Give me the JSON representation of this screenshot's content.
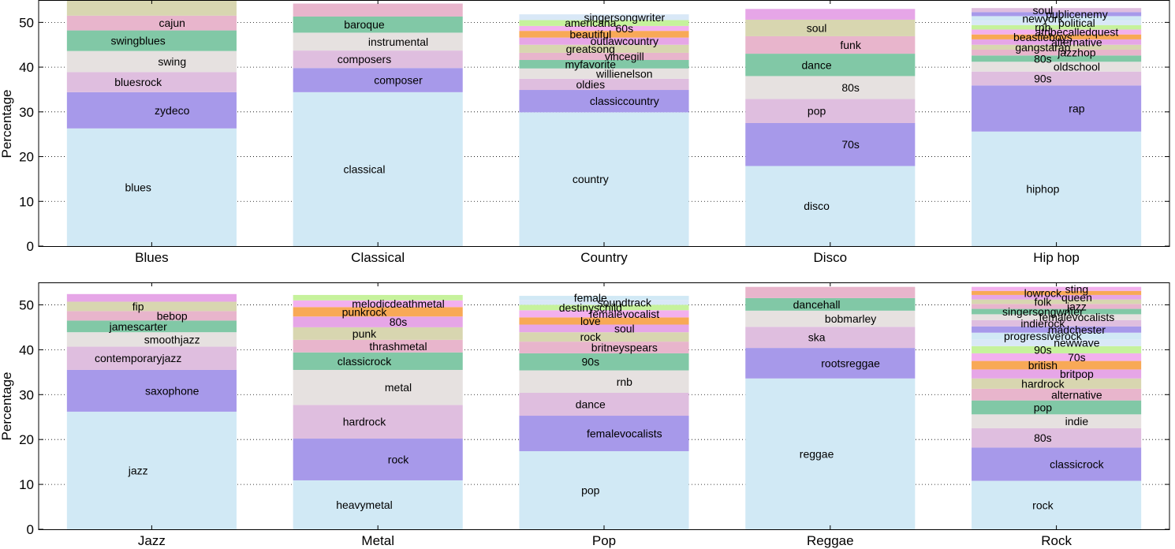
{
  "chart_data": [
    {
      "type": "bar",
      "stacked": true,
      "ylabel": "Percentage",
      "ylim": [
        0,
        55
      ],
      "yticks": [
        0,
        10,
        20,
        30,
        40,
        50
      ],
      "grid": "horizontal-dotted",
      "bars": [
        {
          "category": "Blues",
          "segments": [
            {
              "tag": "blues",
              "value": 26.3
            },
            {
              "tag": "zydeco",
              "value": 8.1
            },
            {
              "tag": "bluesrock",
              "value": 4.5
            },
            {
              "tag": "swing",
              "value": 4.7
            },
            {
              "tag": "swingblues",
              "value": 4.6
            },
            {
              "tag": "cajun",
              "value": 3.3
            },
            {
              "tag": "",
              "value": 3.5
            }
          ]
        },
        {
          "category": "Classical",
          "segments": [
            {
              "tag": "classical",
              "value": 34.4
            },
            {
              "tag": "composer",
              "value": 5.4
            },
            {
              "tag": "composers",
              "value": 3.9
            },
            {
              "tag": "instrumental",
              "value": 4.0
            },
            {
              "tag": "baroque",
              "value": 3.6
            },
            {
              "tag": "",
              "value": 2.9
            }
          ]
        },
        {
          "category": "Country",
          "segments": [
            {
              "tag": "country",
              "value": 29.9
            },
            {
              "tag": "classiccountry",
              "value": 5.0
            },
            {
              "tag": "oldies",
              "value": 2.5
            },
            {
              "tag": "willienelson",
              "value": 2.3
            },
            {
              "tag": "myfavorite",
              "value": 1.9
            },
            {
              "tag": "vincegill",
              "value": 1.6
            },
            {
              "tag": "greatsong",
              "value": 1.8
            },
            {
              "tag": "outlawcountry",
              "value": 1.6
            },
            {
              "tag": "beautiful",
              "value": 1.5
            },
            {
              "tag": "60s",
              "value": 1.1
            },
            {
              "tag": "americana",
              "value": 1.3
            },
            {
              "tag": "singersongwriter",
              "value": 1.3
            }
          ]
        },
        {
          "category": "Disco",
          "segments": [
            {
              "tag": "disco",
              "value": 17.9
            },
            {
              "tag": "70s",
              "value": 9.6
            },
            {
              "tag": "pop",
              "value": 5.4
            },
            {
              "tag": "80s",
              "value": 5.1
            },
            {
              "tag": "dance",
              "value": 5.0
            },
            {
              "tag": "funk",
              "value": 3.9
            },
            {
              "tag": "soul",
              "value": 3.7
            },
            {
              "tag": "",
              "value": 2.4
            }
          ]
        },
        {
          "category": "Hip hop",
          "segments": [
            {
              "tag": "hiphop",
              "value": 25.6
            },
            {
              "tag": "rap",
              "value": 10.3
            },
            {
              "tag": "90s",
              "value": 3.1
            },
            {
              "tag": "oldschool",
              "value": 2.2
            },
            {
              "tag": "80s",
              "value": 1.4
            },
            {
              "tag": "jazzhop",
              "value": 1.3
            },
            {
              "tag": "gangstarap",
              "value": 1.1
            },
            {
              "tag": "alternative",
              "value": 1.2
            },
            {
              "tag": "beastieboys",
              "value": 1.1
            },
            {
              "tag": "atribecalledquest",
              "value": 1.1
            },
            {
              "tag": "rnb",
              "value": 1.0
            },
            {
              "tag": "political",
              "value": 1.0
            },
            {
              "tag": "newyork",
              "value": 1.0
            },
            {
              "tag": "publicenemy",
              "value": 0.9
            },
            {
              "tag": "soul",
              "value": 0.9
            }
          ]
        },
        {
          "category": "Jazz",
          "segments": [
            {
              "tag": "jazz",
              "value": 26.2
            },
            {
              "tag": "saxophone",
              "value": 9.3
            },
            {
              "tag": "contemporaryjazz",
              "value": 5.2
            },
            {
              "tag": "smoothjazz",
              "value": 3.2
            },
            {
              "tag": "jamescarter",
              "value": 2.6
            },
            {
              "tag": "bebop",
              "value": 2.1
            },
            {
              "tag": "fip",
              "value": 2.1
            },
            {
              "tag": "",
              "value": 1.7
            }
          ]
        },
        {
          "category": "Metal",
          "segments": [
            {
              "tag": "heavymetal",
              "value": 10.9
            },
            {
              "tag": "rock",
              "value": 9.3
            },
            {
              "tag": "hardrock",
              "value": 7.5
            },
            {
              "tag": "metal",
              "value": 7.8
            },
            {
              "tag": "classicrock",
              "value": 3.9
            },
            {
              "tag": "thrashmetal",
              "value": 2.8
            },
            {
              "tag": "punk",
              "value": 2.8
            },
            {
              "tag": "80s",
              "value": 2.4
            },
            {
              "tag": "punkrock",
              "value": 2.1
            },
            {
              "tag": "melodicdeathmetal",
              "value": 1.5
            },
            {
              "tag": "",
              "value": 1.2
            }
          ]
        },
        {
          "category": "Pop",
          "segments": [
            {
              "tag": "pop",
              "value": 17.4
            },
            {
              "tag": "femalevocalists",
              "value": 7.9
            },
            {
              "tag": "dance",
              "value": 5.1
            },
            {
              "tag": "rnb",
              "value": 5.0
            },
            {
              "tag": "90s",
              "value": 3.8
            },
            {
              "tag": "britneyspears",
              "value": 2.6
            },
            {
              "tag": "rock",
              "value": 2.1
            },
            {
              "tag": "soul",
              "value": 1.7
            },
            {
              "tag": "love",
              "value": 1.6
            },
            {
              "tag": "femalevocalist",
              "value": 1.6
            },
            {
              "tag": "destinyschild",
              "value": 1.2
            },
            {
              "tag": "soundtrack",
              "value": 1.1
            },
            {
              "tag": "female",
              "value": 0.9
            }
          ]
        },
        {
          "category": "Reggae",
          "segments": [
            {
              "tag": "reggae",
              "value": 33.6
            },
            {
              "tag": "rootsreggae",
              "value": 6.8
            },
            {
              "tag": "ska",
              "value": 4.7
            },
            {
              "tag": "bobmarley",
              "value": 3.6
            },
            {
              "tag": "dancehall",
              "value": 2.8
            },
            {
              "tag": "",
              "value": 2.5
            }
          ]
        },
        {
          "category": "Rock",
          "segments": [
            {
              "tag": "rock",
              "value": 10.8
            },
            {
              "tag": "classicrock",
              "value": 7.4
            },
            {
              "tag": "80s",
              "value": 4.3
            },
            {
              "tag": "indie",
              "value": 3.1
            },
            {
              "tag": "pop",
              "value": 3.1
            },
            {
              "tag": "alternative",
              "value": 2.6
            },
            {
              "tag": "hardrock",
              "value": 2.3
            },
            {
              "tag": "britpop",
              "value": 2.0
            },
            {
              "tag": "british",
              "value": 1.9
            },
            {
              "tag": "70s",
              "value": 1.7
            },
            {
              "tag": "90s",
              "value": 1.6
            },
            {
              "tag": "newwave",
              "value": 1.5
            },
            {
              "tag": "progressiverock",
              "value": 1.5
            },
            {
              "tag": "madchester",
              "value": 1.4
            },
            {
              "tag": "indierock",
              "value": 1.4
            },
            {
              "tag": "femalevocalists",
              "value": 1.3
            },
            {
              "tag": "singersongwriter",
              "value": 1.2
            },
            {
              "tag": "jazz",
              "value": 1.1
            },
            {
              "tag": "folk",
              "value": 1.0
            },
            {
              "tag": "queen",
              "value": 1.0
            },
            {
              "tag": "lowrock",
              "value": 0.9
            },
            {
              "tag": "sting",
              "value": 0.9
            }
          ]
        }
      ]
    }
  ],
  "colors": [
    "#d1e9f5",
    "#a799ea",
    "#dfbedf",
    "#e6e1e0",
    "#81c8a6",
    "#e8b5cc",
    "#d8d6b0",
    "#e6a6e7",
    "#f8a956",
    "#f3b0ee",
    "#c6f29c",
    "#d9e8f7"
  ]
}
